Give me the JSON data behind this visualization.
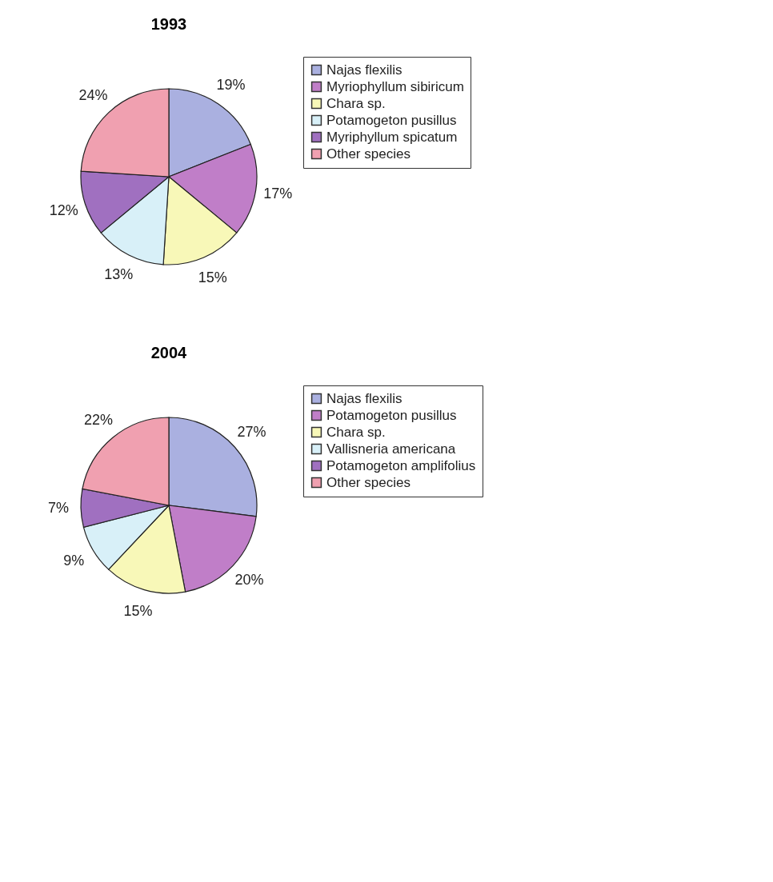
{
  "chart_data": [
    {
      "type": "pie",
      "title": "1993",
      "legend": "right",
      "categories": [
        "Najas flexilis",
        "Myriophyllum sibiricum",
        "Chara sp.",
        "Potamogeton pusillus",
        "Myriphyllum spicatum",
        "Other species"
      ],
      "values": [
        19,
        17,
        15,
        13,
        12,
        24
      ],
      "value_labels": [
        "19%",
        "17%",
        "15%",
        "13%",
        "12%",
        "24%"
      ],
      "colors": [
        "#aab0e0",
        "#c07ec8",
        "#f8f8b8",
        "#d8f0f8",
        "#a070c0",
        "#f0a0b0"
      ]
    },
    {
      "type": "pie",
      "title": "2004",
      "legend": "right",
      "categories": [
        "Najas flexilis",
        "Potamogeton pusillus",
        "Chara sp.",
        "Vallisneria americana",
        "Potamogeton amplifolius",
        "Other species"
      ],
      "values": [
        27,
        20,
        15,
        9,
        7,
        22
      ],
      "value_labels": [
        "27%",
        "20%",
        "15%",
        "9%",
        "7%",
        "22%"
      ],
      "colors": [
        "#aab0e0",
        "#c07ec8",
        "#f8f8b8",
        "#d8f0f8",
        "#a070c0",
        "#f0a0b0"
      ]
    }
  ]
}
